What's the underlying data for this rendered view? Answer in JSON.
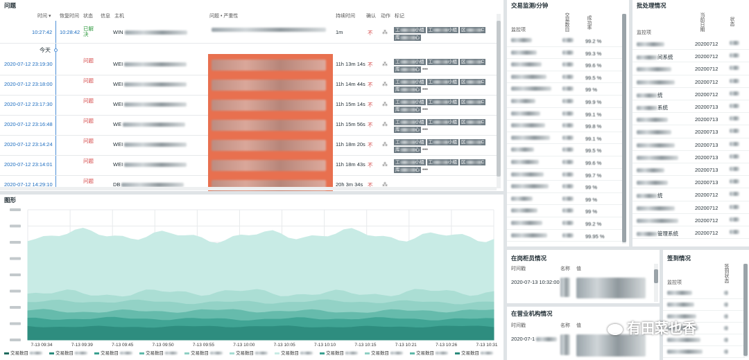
{
  "problems": {
    "title": "问题",
    "columns": {
      "time": "时间 ▾",
      "recovery": "恢复时间",
      "status": "状态",
      "info": "信息",
      "host": "主机",
      "problem": "问题 • 严重性",
      "duration": "持续时间",
      "ack": "确认",
      "actions": "动作",
      "tags": "标记"
    },
    "today_label": "今天",
    "rows": [
      {
        "time": "10:27:42",
        "recovery": "10:28:42",
        "status": "已解决",
        "host": "WIN",
        "duration": "1m",
        "ack": "不",
        "sev": false
      },
      {
        "time": "2020-07-12 23:19:30",
        "recovery": "",
        "status": "问题",
        "host": "WEI",
        "duration": "11h 13m 14s",
        "ack": "不",
        "sev": true
      },
      {
        "time": "2020-07-12 23:18:00",
        "recovery": "",
        "status": "问题",
        "host": "WEI",
        "duration": "11h 14m 44s",
        "ack": "不",
        "sev": true
      },
      {
        "time": "2020-07-12 23:17:30",
        "recovery": "",
        "status": "问题",
        "host": "WEI",
        "duration": "11h 15m 14s",
        "ack": "不",
        "sev": true
      },
      {
        "time": "2020-07-12 23:16:48",
        "recovery": "",
        "status": "问题",
        "host": "WE",
        "duration": "11h 15m 56s",
        "ack": "不",
        "sev": true
      },
      {
        "time": "2020-07-12 23:14:24",
        "recovery": "",
        "status": "问题",
        "host": "WEI",
        "duration": "11h 18m 20s",
        "ack": "不",
        "sev": true
      },
      {
        "time": "2020-07-12 23:14:01",
        "recovery": "",
        "status": "问题",
        "host": "WEI",
        "duration": "11h 18m 43s",
        "ack": "不",
        "sev": true
      },
      {
        "time": "2020-07-12 14:29:10",
        "recovery": "",
        "status": "问题",
        "host": "DB",
        "duration": "20h 3m 34s",
        "ack": "不",
        "sev": true
      }
    ],
    "tag_labels": [
      "工",
      "小组",
      "工",
      "小组",
      "区",
      "C",
      "库",
      "心"
    ]
  },
  "graph": {
    "title": "图形",
    "x_ticks": [
      "7-13 09:34",
      "7-13 09:39",
      "7-13 09:45",
      "7-13 09:50",
      "7-13 09:55",
      "7-13 10:00",
      "7-13 10:05",
      "7-13 10:10",
      "7-13 10:15",
      "7-13 10:21",
      "7-13 10:26",
      "7-13 10:31"
    ],
    "legend": [
      "交易数目",
      "交易数目",
      "交易数目",
      "交易数目",
      "交易数目",
      "交易数目",
      "交易数目",
      "交易数目",
      "交易数目",
      "交易数目",
      "交易数目"
    ],
    "colors": [
      "#c8ebe5",
      "#8fd0c4",
      "#5fb8a8",
      "#3aa090",
      "#2b8a7c",
      "#a6dcd2"
    ]
  },
  "trade": {
    "title": "交易监测/分钟",
    "col1": "监控项",
    "col2": "交易数目",
    "col3": "成功率",
    "rows": [
      {
        "v": "99.2 %"
      },
      {
        "v": "99.3 %"
      },
      {
        "v": "99.6 %"
      },
      {
        "v": "99.5 %"
      },
      {
        "v": "99 %"
      },
      {
        "v": "99.9 %"
      },
      {
        "v": "99.1 %"
      },
      {
        "v": "99.8 %"
      },
      {
        "v": "99.1 %"
      },
      {
        "v": "99.5 %"
      },
      {
        "v": "99.6 %"
      },
      {
        "v": "99.7 %"
      },
      {
        "v": "99 %"
      },
      {
        "v": "99 %"
      },
      {
        "v": "99 %"
      },
      {
        "v": "99.2 %"
      },
      {
        "v": "99.95 %"
      }
    ]
  },
  "batch": {
    "title": "批处理情况",
    "col1": "监控项",
    "col2": "当前日期",
    "col3": "状态",
    "rows": [
      {
        "name": "",
        "date": "20200712"
      },
      {
        "name": "间系统",
        "date": "20200712"
      },
      {
        "name": "",
        "date": "20200712"
      },
      {
        "name": "",
        "date": "20200712"
      },
      {
        "name": "统",
        "date": "20200712"
      },
      {
        "name": "系统",
        "date": "20200713"
      },
      {
        "name": "",
        "date": "20200713"
      },
      {
        "name": "",
        "date": "20200713"
      },
      {
        "name": "",
        "date": "20200713"
      },
      {
        "name": "",
        "date": "20200713"
      },
      {
        "name": "",
        "date": "20200713"
      },
      {
        "name": "",
        "date": "20200713"
      },
      {
        "name": "统",
        "date": "20200712"
      },
      {
        "name": "",
        "date": "20200712"
      },
      {
        "name": "",
        "date": "20200712"
      },
      {
        "name": "管理系统",
        "date": "20200712"
      }
    ]
  },
  "onsite": {
    "title": "在岗柜员情况",
    "col1": "时间戳",
    "col2": "名称",
    "col3": "值",
    "row_time": "2020-07-13 10:32:00"
  },
  "branch": {
    "title": "在营业机构情况",
    "col1": "时间戳",
    "col2": "名称",
    "col3": "值",
    "row_time": "2020-07-1"
  },
  "signin": {
    "title": "签到情况",
    "col1": "监控项",
    "col2": "签到状态"
  },
  "watermark": "有田菜也香"
}
